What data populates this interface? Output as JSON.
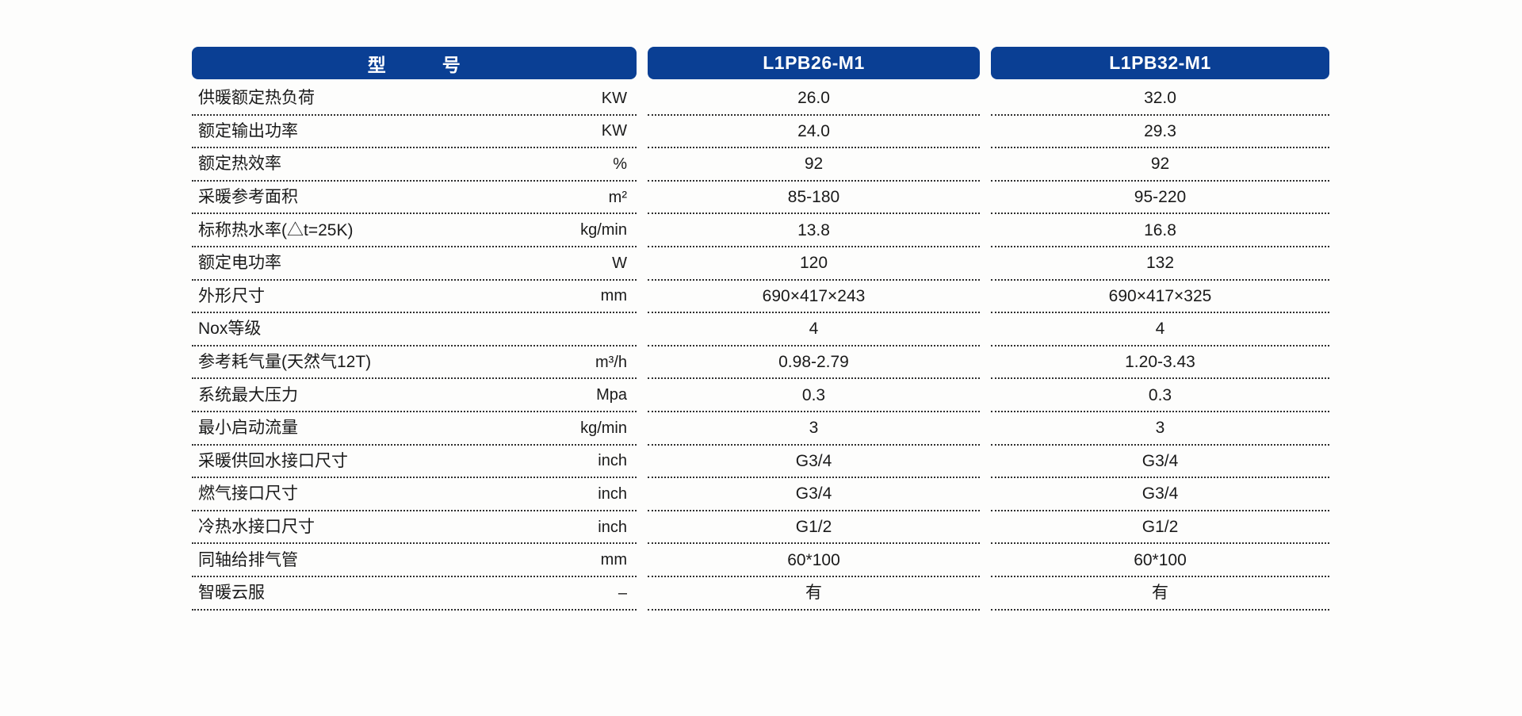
{
  "page": {
    "background_color": "#fdfdfc",
    "accent_color": "#0a3f94",
    "text_color": "#1a1a1a"
  },
  "table": {
    "header": {
      "model_label": "型　　　号",
      "columns": [
        "L1PB26-M1",
        "L1PB32-M1"
      ]
    },
    "rows": [
      {
        "label": "供暖额定热负荷",
        "unit": "KW",
        "values": [
          "26.0",
          "32.0"
        ]
      },
      {
        "label": "额定输出功率",
        "unit": "KW",
        "values": [
          "24.0",
          "29.3"
        ]
      },
      {
        "label": "额定热效率",
        "unit": "%",
        "values": [
          "92",
          "92"
        ]
      },
      {
        "label": "采暖参考面积",
        "unit": "m²",
        "values": [
          "85-180",
          "95-220"
        ]
      },
      {
        "label": "标称热水率(△t=25K)",
        "unit": "kg/min",
        "values": [
          "13.8",
          "16.8"
        ]
      },
      {
        "label": "额定电功率",
        "unit": "W",
        "values": [
          "120",
          "132"
        ]
      },
      {
        "label": "外形尺寸",
        "unit": "mm",
        "values": [
          "690×417×243",
          "690×417×325"
        ]
      },
      {
        "label": "Nox等级",
        "unit": "",
        "values": [
          "4",
          "4"
        ]
      },
      {
        "label": "参考耗气量(天然气12T)",
        "unit": "m³/h",
        "values": [
          "0.98-2.79",
          "1.20-3.43"
        ]
      },
      {
        "label": "系统最大压力",
        "unit": "Mpa",
        "values": [
          "0.3",
          "0.3"
        ]
      },
      {
        "label": "最小启动流量",
        "unit": "kg/min",
        "values": [
          "3",
          "3"
        ]
      },
      {
        "label": "采暖供回水接口尺寸",
        "unit": "inch",
        "values": [
          "G3/4",
          "G3/4"
        ]
      },
      {
        "label": "燃气接口尺寸",
        "unit": "inch",
        "values": [
          "G3/4",
          "G3/4"
        ]
      },
      {
        "label": "冷热水接口尺寸",
        "unit": "inch",
        "values": [
          "G1/2",
          "G1/2"
        ]
      },
      {
        "label": "同轴给排气管",
        "unit": "mm",
        "values": [
          "60*100",
          "60*100"
        ]
      },
      {
        "label": "智暖云服",
        "unit": "–",
        "values": [
          "有",
          "有"
        ]
      }
    ]
  }
}
